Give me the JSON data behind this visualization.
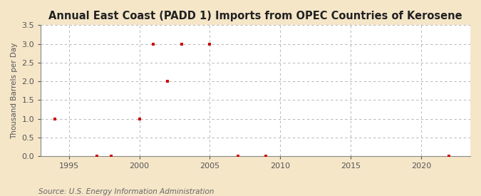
{
  "title": "Annual East Coast (PADD 1) Imports from OPEC Countries of Kerosene",
  "ylabel": "Thousand Barrels per Day",
  "source": "Source: U.S. Energy Information Administration",
  "figure_bg": "#f5e6c8",
  "plot_bg": "#ffffff",
  "data_color": "#cc0000",
  "grid_color": "#aaaaaa",
  "spine_color": "#888888",
  "tick_color": "#555555",
  "xlim": [
    1993.0,
    2023.5
  ],
  "ylim": [
    0.0,
    3.5
  ],
  "yticks": [
    0.0,
    0.5,
    1.0,
    1.5,
    2.0,
    2.5,
    3.0,
    3.5
  ],
  "xticks": [
    1995,
    2000,
    2005,
    2010,
    2015,
    2020
  ],
  "years": [
    1994,
    1997,
    1998,
    2000,
    2001,
    2002,
    2003,
    2005,
    2007,
    2009,
    2022
  ],
  "values": [
    1.0,
    0.0,
    0.0,
    1.0,
    3.0,
    2.0,
    3.0,
    3.0,
    0.0,
    0.0,
    0.0
  ],
  "title_fontsize": 10.5,
  "ylabel_fontsize": 7.5,
  "tick_fontsize": 8.0,
  "source_fontsize": 7.5
}
